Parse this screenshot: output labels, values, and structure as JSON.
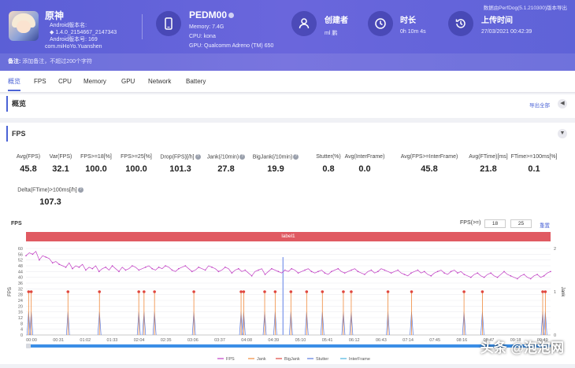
{
  "header": {
    "app": {
      "name": "原神",
      "version_label": "Android版本名:",
      "version_value": "1.4.0_2154667_2147343",
      "code_label": "Android版本号:",
      "code_value": "169",
      "package": "com.miHoYo.Yuanshen"
    },
    "device": {
      "title": "PEDM00",
      "memory": "Memory: 7.4G",
      "cpu": "CPU: kona",
      "gpu": "GPU: Qualcomm Adreno (TM) 650"
    },
    "creator": {
      "title": "创建者",
      "value": "ml 鹏"
    },
    "duration": {
      "title": "时长",
      "value": "0h 10m 4s"
    },
    "upload": {
      "title": "上传时间",
      "value": "27/03/2021 00:42:39"
    },
    "export_note": "数据由PerfDog(5.1.210300)版本导出",
    "remark_label": "备注:",
    "remark_placeholder": "添加备注，不超过200个字符"
  },
  "tabs": [
    "概览",
    "FPS",
    "CPU",
    "Memory",
    "GPU",
    "Network",
    "Battery"
  ],
  "overview": {
    "title": "概览",
    "export_all": "导出全部"
  },
  "fps_section": {
    "title": "FPS",
    "metrics": [
      {
        "label": "Avg(FPS)",
        "value": "45.8",
        "q": false
      },
      {
        "label": "Var(FPS)",
        "value": "32.1",
        "q": false
      },
      {
        "label": "FPS>=18[%]",
        "value": "100.0",
        "q": false
      },
      {
        "label": "FPS>=25[%]",
        "value": "100.0",
        "q": false
      },
      {
        "label": "Drop(FPS)[/h]",
        "value": "101.3",
        "q": true
      },
      {
        "label": "Jank(/10min)",
        "value": "27.8",
        "q": true
      },
      {
        "label": "BigJank(/10min)",
        "value": "19.9",
        "q": true
      },
      {
        "label": "Stutter(%)",
        "value": "0.8",
        "q": false
      },
      {
        "label": "Avg(InterFrame)",
        "value": "0.0",
        "q": false
      },
      {
        "label": "Avg(FPS>=InterFrame)",
        "value": "45.8",
        "q": false
      },
      {
        "label": "Avg(FTime)[ms]",
        "value": "21.8",
        "q": false
      },
      {
        "label": "FTime>=100ms[%]",
        "value": "0.1",
        "q": false
      },
      {
        "label": "Delta(FTime)>100ms[/h]",
        "value": "107.3",
        "q": true
      }
    ],
    "chart_title": "FPS",
    "fps_filter_label": "FPS(>=)",
    "fps_filter_1": "18",
    "fps_filter_2": "25",
    "reset_label": "重置",
    "label_bar": "label1"
  },
  "chart_data": {
    "type": "line",
    "ylabel": "FPS",
    "y2label": "Jank",
    "ylim": [
      0,
      60
    ],
    "y2lim": [
      0,
      2
    ],
    "y_ticks": [
      "0",
      "4",
      "8",
      "12",
      "16",
      "20",
      "24",
      "28",
      "32",
      "36",
      "40",
      "44",
      "48",
      "52",
      "56",
      "60"
    ],
    "y2_ticks": [
      "0",
      "1",
      "2"
    ],
    "x_ticks": [
      "00:00",
      "00:31",
      "01:02",
      "01:33",
      "02:04",
      "02:35",
      "03:06",
      "03:37",
      "04:08",
      "04:39",
      "05:10",
      "05:41",
      "06:12",
      "06:43",
      "07:14",
      "07:45",
      "08:16",
      "08:47",
      "09:18",
      "09:49"
    ],
    "legend": [
      {
        "name": "FPS",
        "color": "#c13fc4"
      },
      {
        "name": "Jank",
        "color": "#f08a3c"
      },
      {
        "name": "BigJank",
        "color": "#e0473f"
      },
      {
        "name": "Stutter",
        "color": "#5b7be0"
      },
      {
        "name": "InterFrame",
        "color": "#4bb3e0"
      }
    ],
    "fps_series": [
      55,
      57,
      56,
      58,
      52,
      55,
      54,
      53,
      50,
      51,
      49,
      48,
      47,
      50,
      46,
      48,
      47,
      49,
      45,
      47,
      46,
      48,
      44,
      46,
      47,
      45,
      48,
      46,
      44,
      47,
      45,
      46,
      48,
      47,
      45,
      46,
      47,
      48,
      46,
      45,
      47,
      46,
      48,
      47,
      45,
      44,
      46,
      47,
      48,
      46,
      44,
      45,
      47,
      46,
      45,
      48,
      47,
      46,
      44,
      45,
      47,
      46,
      43,
      45,
      46,
      44,
      45,
      43,
      41,
      44,
      45,
      46,
      42,
      44,
      46,
      45,
      44,
      43,
      45,
      44,
      46,
      45,
      43,
      44,
      45,
      46,
      44,
      43,
      44,
      45,
      43,
      42,
      44,
      45,
      46,
      44,
      43,
      44,
      45,
      46,
      44,
      43,
      42,
      44,
      45,
      43,
      44,
      46,
      45,
      44,
      43,
      44,
      45,
      43,
      42,
      41,
      43,
      44,
      45,
      43,
      44,
      42,
      41,
      43,
      44,
      45,
      43,
      42,
      44,
      45,
      43,
      44,
      42,
      41,
      40,
      42,
      43,
      41,
      40,
      42,
      43,
      41,
      40,
      42,
      44,
      42,
      41,
      40,
      39,
      41,
      42,
      40,
      39,
      41,
      42,
      40,
      41,
      43,
      44
    ],
    "jank_positions": [
      0.005,
      0.01,
      0.08,
      0.14,
      0.215,
      0.225,
      0.245,
      0.32,
      0.41,
      0.415,
      0.455,
      0.475,
      0.505,
      0.535,
      0.565,
      0.605,
      0.62,
      0.69,
      0.735,
      0.835,
      0.87,
      0.985,
      0.99
    ],
    "jank_values": [
      1,
      1,
      1,
      1,
      1,
      1,
      1,
      1,
      1,
      1,
      1,
      1,
      1,
      1,
      1,
      1,
      1,
      1,
      1,
      1,
      1,
      1,
      1
    ],
    "stutter_positions": [
      0.005,
      0.01,
      0.08,
      0.14,
      0.215,
      0.225,
      0.245,
      0.32,
      0.41,
      0.415,
      0.455,
      0.475,
      0.505,
      0.535,
      0.565,
      0.605,
      0.62,
      0.69,
      0.735,
      0.835,
      0.87,
      0.985,
      0.99
    ]
  }
}
